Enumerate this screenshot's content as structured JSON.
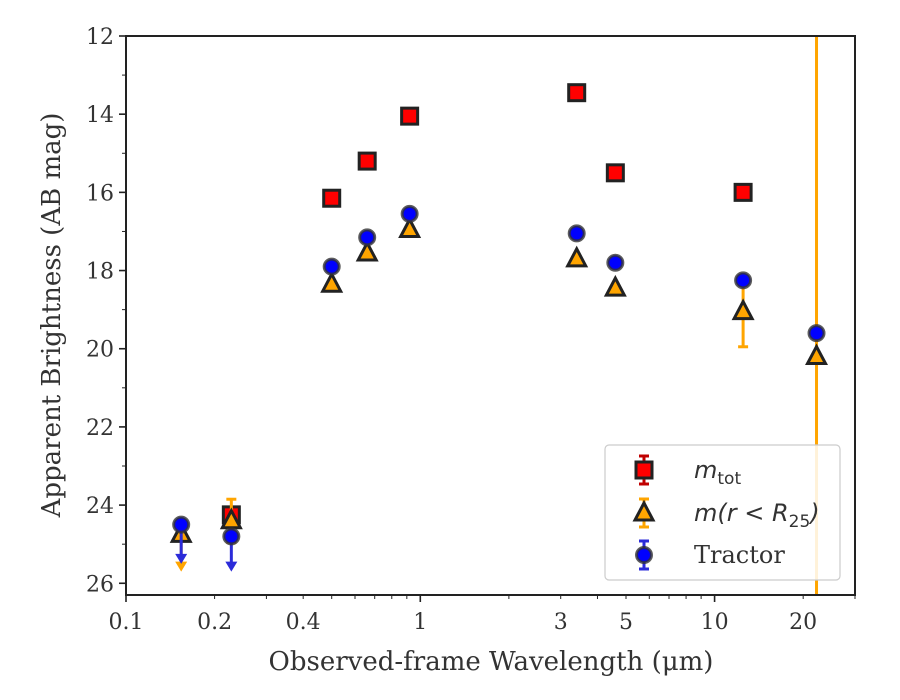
{
  "chart_data": {
    "type": "scatter",
    "xlabel": "Observed-frame Wavelength (μm)",
    "ylabel": "Apparent Brightness (AB mag)",
    "xscale": "log",
    "xlim": [
      0.1,
      30
    ],
    "ylim": [
      26.3,
      12
    ],
    "y_inverted": true,
    "xticks": [
      {
        "value": 0.1,
        "label": "0.1"
      },
      {
        "value": 0.2,
        "label": "0.2"
      },
      {
        "value": 0.4,
        "label": "0.4"
      },
      {
        "value": 1,
        "label": "1"
      },
      {
        "value": 3,
        "label": "3"
      },
      {
        "value": 5,
        "label": "5"
      },
      {
        "value": 10,
        "label": "10"
      },
      {
        "value": 20,
        "label": "20"
      }
    ],
    "yticks": [
      {
        "value": 12,
        "label": "12"
      },
      {
        "value": 14,
        "label": "14"
      },
      {
        "value": 16,
        "label": "16"
      },
      {
        "value": 18,
        "label": "18"
      },
      {
        "value": 20,
        "label": "20"
      },
      {
        "value": 22,
        "label": "22"
      },
      {
        "value": 24,
        "label": "24"
      },
      {
        "value": 26,
        "label": "26"
      }
    ],
    "grid": false,
    "legend_position": "lower right",
    "series": [
      {
        "name": "m_tot",
        "legend_main": "m",
        "legend_sub": "tot",
        "marker": "square",
        "face_color": "#ff0000",
        "edge_color": "#222222",
        "error_color": "#c00000",
        "points": [
          {
            "x": 0.228,
            "y": 24.25,
            "err": 0.1
          },
          {
            "x": 0.5,
            "y": 16.15,
            "err": 0
          },
          {
            "x": 0.66,
            "y": 15.2,
            "err": 0
          },
          {
            "x": 0.92,
            "y": 14.05,
            "err": 0
          },
          {
            "x": 3.4,
            "y": 13.45,
            "err": 0
          },
          {
            "x": 4.6,
            "y": 15.5,
            "err": 0
          },
          {
            "x": 12.5,
            "y": 16.0,
            "err": 0
          }
        ]
      },
      {
        "name": "m(r < R_25)",
        "legend_main": "m(r < R",
        "legend_sub": "25",
        "legend_tail": ")",
        "marker": "triangle",
        "face_color": "#ffa500",
        "edge_color": "#222222",
        "error_color": "#ffa500",
        "points": [
          {
            "x": 0.154,
            "y": 24.75,
            "upper_limit_y": 25.6
          },
          {
            "x": 0.228,
            "y": 24.4,
            "err": 0.55
          },
          {
            "x": 0.5,
            "y": 18.35,
            "err": 0
          },
          {
            "x": 0.66,
            "y": 17.55,
            "err": 0
          },
          {
            "x": 0.92,
            "y": 16.95,
            "err": 0
          },
          {
            "x": 3.4,
            "y": 17.7,
            "err": 0
          },
          {
            "x": 4.6,
            "y": 18.45,
            "err": 0
          },
          {
            "x": 12.5,
            "y": 19.05,
            "err": 0.9
          },
          {
            "x": 22.2,
            "y": 20.2,
            "vertical_span": true
          }
        ]
      },
      {
        "name": "Tractor",
        "legend_main": "Tractor",
        "marker": "circle",
        "face_color": "#0000ff",
        "edge_color": "#333333",
        "error_color": "#2b2bd9",
        "points": [
          {
            "x": 0.154,
            "y": 24.5,
            "upper_limit_y": 25.4
          },
          {
            "x": 0.228,
            "y": 24.8,
            "upper_limit_y": 25.6
          },
          {
            "x": 0.5,
            "y": 17.9,
            "err": 0
          },
          {
            "x": 0.66,
            "y": 17.15,
            "err": 0
          },
          {
            "x": 0.92,
            "y": 16.55,
            "err": 0
          },
          {
            "x": 3.4,
            "y": 17.05,
            "err": 0
          },
          {
            "x": 4.6,
            "y": 17.8,
            "err": 0
          },
          {
            "x": 12.5,
            "y": 18.25,
            "err": 0
          },
          {
            "x": 22.2,
            "y": 19.6,
            "err": 0
          }
        ]
      }
    ]
  }
}
